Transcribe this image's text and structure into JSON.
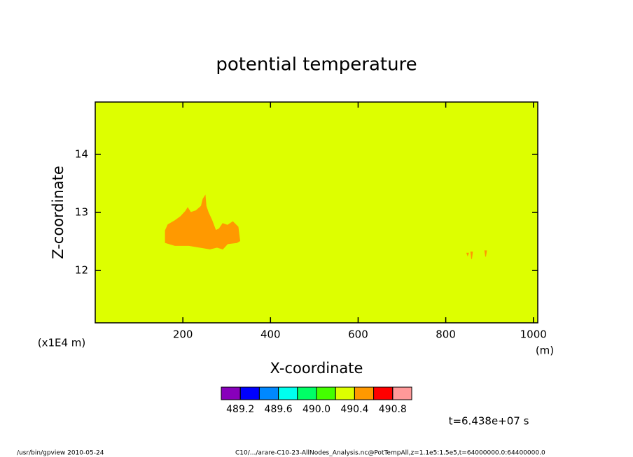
{
  "chart_data": {
    "type": "contour",
    "title": "potential temperature",
    "x_label": "X-coordinate",
    "y_label": "Z-coordinate",
    "x_unit": "(m)",
    "y_unit": "(x1E4 m)",
    "xlim": [
      0,
      1010
    ],
    "ylim": [
      11.1,
      14.9
    ],
    "xticks": [
      200,
      400,
      600,
      800,
      1000
    ],
    "yticks": [
      12,
      13,
      14
    ],
    "background_color": "#ddff00",
    "regions": [
      {
        "color": "#ff9900",
        "x": [
          160,
          166,
          182,
          195,
          206,
          211,
          218,
          230,
          242,
          246,
          251,
          253,
          258,
          266,
          275,
          283,
          291,
          302,
          314,
          326,
          330,
          323,
          302,
          291,
          278,
          262,
          238,
          214,
          182,
          160
        ],
        "y": [
          12.69,
          12.79,
          12.86,
          12.93,
          13.02,
          13.08,
          13.0,
          13.03,
          13.11,
          13.23,
          13.29,
          13.11,
          13.0,
          12.87,
          12.69,
          12.72,
          12.81,
          12.78,
          12.84,
          12.75,
          12.51,
          12.48,
          12.46,
          12.37,
          12.4,
          12.37,
          12.4,
          12.43,
          12.43,
          12.48
        ]
      },
      {
        "color": "#ff9900",
        "x": [
          857,
          861,
          859
        ],
        "y": [
          12.32,
          12.32,
          12.2
        ]
      },
      {
        "color": "#ff9900",
        "x": [
          889,
          893,
          891
        ],
        "y": [
          12.34,
          12.34,
          12.24
        ]
      },
      {
        "color": "#ff9900",
        "x": [
          848,
          852,
          850
        ],
        "y": [
          12.3,
          12.3,
          12.26
        ]
      }
    ],
    "colorbar": {
      "clim": [
        489.0,
        491.0
      ],
      "colors": [
        "#8800bb",
        "#0000ff",
        "#0088ff",
        "#00ffee",
        "#00ff66",
        "#44ff00",
        "#ddff00",
        "#ff9900",
        "#ff0000",
        "#ff9999"
      ],
      "ticks": [
        489.2,
        489.6,
        {
          "value": 490.0,
          "label": "490.0"
        },
        490.4,
        490.8
      ]
    },
    "time_label": "t=6.438e+07 s",
    "footer_left": "/usr/bin/gpview  2010-05-24",
    "footer_right": "C10/.../arare-C10-23-AllNodes_Analysis.nc@PotTempAll,z=1.1e5:1.5e5,t=64000000.0:64400000.0"
  }
}
